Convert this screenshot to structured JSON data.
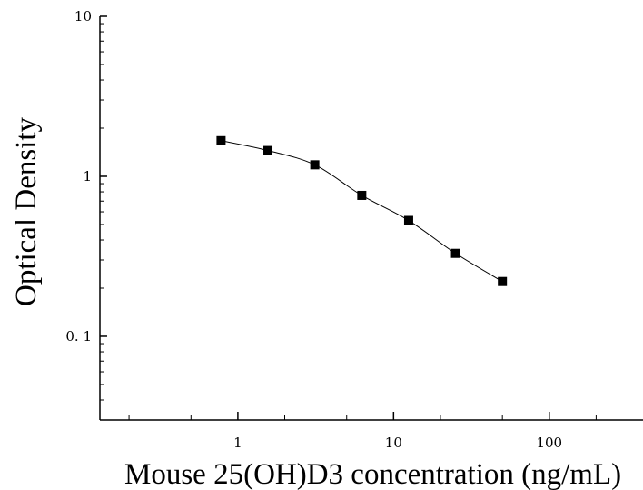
{
  "chart_data": {
    "type": "scatter",
    "title": "",
    "xlabel": "Mouse 25(OH)D3 concentration (ng/mL)",
    "ylabel": "Optical Density",
    "xscale": "log",
    "yscale": "log",
    "xlim": [
      0.13,
      400
    ],
    "ylim": [
      0.03,
      10
    ],
    "x_ticks": [
      {
        "value": 1,
        "label": "1"
      },
      {
        "value": 10,
        "label": "10"
      },
      {
        "value": 100,
        "label": "100"
      }
    ],
    "y_ticks": [
      {
        "value": 0.1,
        "label": "0. 1"
      },
      {
        "value": 1,
        "label": "1"
      },
      {
        "value": 10,
        "label": "10"
      }
    ],
    "grid": false,
    "legend": "none",
    "marker": "square",
    "fit_line": true,
    "color": "#000000",
    "points": [
      {
        "x": 0.78,
        "y": 1.67
      },
      {
        "x": 1.56,
        "y": 1.45
      },
      {
        "x": 3.12,
        "y": 1.18
      },
      {
        "x": 6.25,
        "y": 0.76
      },
      {
        "x": 12.5,
        "y": 0.53
      },
      {
        "x": 25,
        "y": 0.33
      },
      {
        "x": 50,
        "y": 0.22
      }
    ]
  }
}
